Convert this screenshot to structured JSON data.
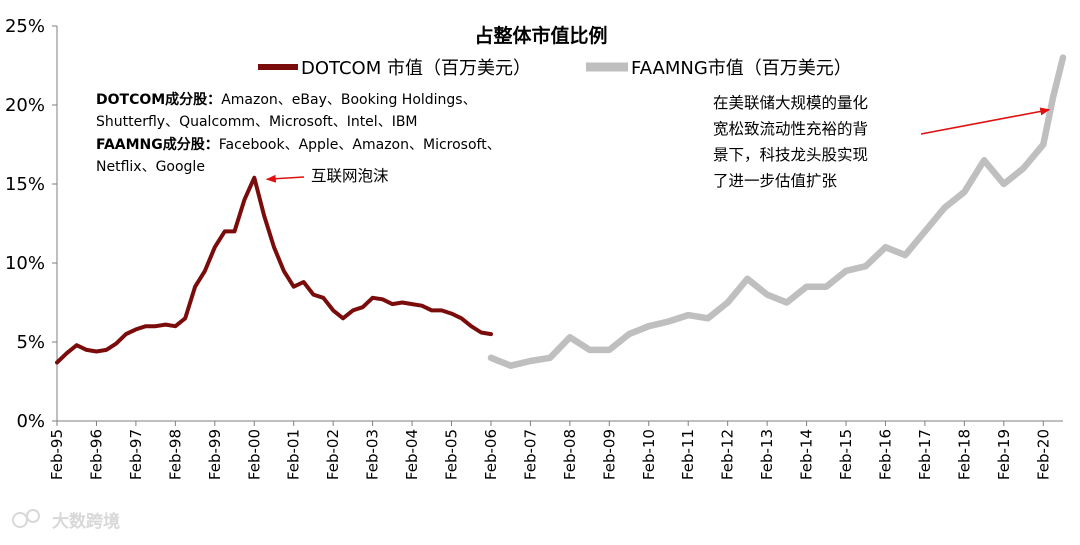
{
  "chart_data": {
    "type": "line",
    "title": "占整体市值比例",
    "y_ticks": [
      "0%",
      "5%",
      "10%",
      "15%",
      "20%",
      "25%"
    ],
    "ylim": [
      0,
      25
    ],
    "x_ticks": [
      "Feb-95",
      "Feb-96",
      "Feb-97",
      "Feb-98",
      "Feb-99",
      "Feb-00",
      "Feb-01",
      "Feb-02",
      "Feb-03",
      "Feb-04",
      "Feb-05",
      "Feb-06",
      "Feb-07",
      "Feb-08",
      "Feb-09",
      "Feb-10",
      "Feb-11",
      "Feb-12",
      "Feb-13",
      "Feb-14",
      "Feb-15",
      "Feb-16",
      "Feb-17",
      "Feb-18",
      "Feb-19",
      "Feb-20"
    ],
    "xlim": [
      "Feb-95",
      "Aug-20"
    ],
    "grid": false,
    "legend_position": "top",
    "series": [
      {
        "name": "DOTCOM 市值（百万美元）",
        "color": "#7b0c0c",
        "x": [
          "1995-02",
          "1995-05",
          "1995-08",
          "1995-11",
          "1996-02",
          "1996-05",
          "1996-08",
          "1996-11",
          "1997-02",
          "1997-05",
          "1997-08",
          "1997-11",
          "1998-02",
          "1998-05",
          "1998-08",
          "1998-11",
          "1999-02",
          "1999-05",
          "1999-08",
          "1999-11",
          "2000-02",
          "2000-05",
          "2000-08",
          "2000-11",
          "2001-02",
          "2001-05",
          "2001-08",
          "2001-11",
          "2002-02",
          "2002-05",
          "2002-08",
          "2002-11",
          "2003-02",
          "2003-05",
          "2003-08",
          "2003-11",
          "2004-02",
          "2004-05",
          "2004-08",
          "2004-11",
          "2005-02",
          "2005-05",
          "2005-08",
          "2005-11",
          "2006-02"
        ],
        "y": [
          3.7,
          4.3,
          4.8,
          4.5,
          4.4,
          4.5,
          4.9,
          5.5,
          5.8,
          6.0,
          6.0,
          6.1,
          6.0,
          6.5,
          8.5,
          9.5,
          11.0,
          12.0,
          12.0,
          14.0,
          15.4,
          13.0,
          11.0,
          9.5,
          8.5,
          8.8,
          8.0,
          7.8,
          7.0,
          6.5,
          7.0,
          7.2,
          7.8,
          7.7,
          7.4,
          7.5,
          7.4,
          7.3,
          7.0,
          7.0,
          6.8,
          6.5,
          6.0,
          5.6,
          5.5
        ]
      },
      {
        "name": "FAAMNG市值（百万美元）",
        "color": "#bfbfbf",
        "x": [
          "2006-02",
          "2006-08",
          "2007-02",
          "2007-08",
          "2008-02",
          "2008-08",
          "2009-02",
          "2009-08",
          "2010-02",
          "2010-08",
          "2011-02",
          "2011-08",
          "2012-02",
          "2012-08",
          "2013-02",
          "2013-08",
          "2014-02",
          "2014-08",
          "2015-02",
          "2015-08",
          "2016-02",
          "2016-08",
          "2017-02",
          "2017-08",
          "2018-02",
          "2018-08",
          "2019-02",
          "2019-08",
          "2020-02",
          "2020-05",
          "2020-08"
        ],
        "y": [
          4.0,
          3.5,
          3.8,
          4.0,
          5.3,
          4.5,
          4.5,
          5.5,
          6.0,
          6.3,
          6.7,
          6.5,
          7.5,
          9.0,
          8.0,
          7.5,
          8.5,
          8.5,
          9.5,
          9.8,
          11.0,
          10.5,
          12.0,
          13.5,
          14.5,
          16.5,
          15.0,
          16.0,
          17.5,
          20.5,
          23.0
        ]
      }
    ],
    "annotations": [
      {
        "text": "互联网泡沫",
        "lines": [
          "互联网泡沫"
        ],
        "points_to_x": "2000-04",
        "points_to_y": 15.3
      },
      {
        "text": "在美联储大规模的量化宽松致流动性充裕的背景下，科技龙头股实现了进一步估值扩张",
        "lines": [
          "在美联储大规模的量化",
          "宽松致流动性充裕的背",
          "景下，科技龙头股实现",
          "了进一步估值扩张"
        ],
        "points_to_x": "2020-02",
        "points_to_y": 19.7
      }
    ],
    "components": {
      "dotcom": {
        "label": "DOTCOM成分股：",
        "line1": "Amazon、eBay、Booking Holdings、",
        "line2": "Shutterfly、Qualcomm、Microsoft、Intel、IBM"
      },
      "faamng": {
        "label": "FAAMNG成分股：",
        "line1": "Facebook、Apple、Amazon、Microsoft、",
        "line2": "Netflix、Google"
      }
    }
  },
  "watermark": {
    "text": "大数跨境"
  }
}
